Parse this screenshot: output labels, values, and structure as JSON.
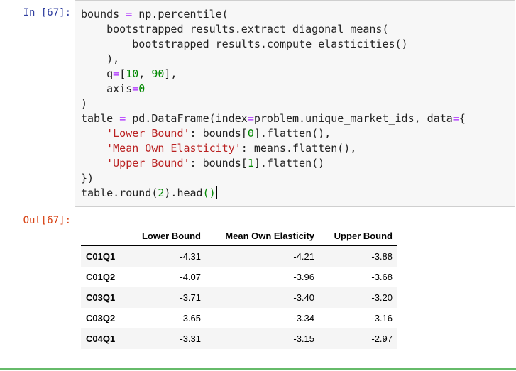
{
  "cell": {
    "in_prompt": "In [67]:",
    "out_prompt": "Out[67]:",
    "code_lines": [
      [
        {
          "t": "bounds "
        },
        {
          "t": "=",
          "c": "op"
        },
        {
          "t": " np.percentile("
        }
      ],
      [
        {
          "t": "    bootstrapped_results.extract_diagonal_means("
        }
      ],
      [
        {
          "t": "        bootstrapped_results.compute_elasticities()"
        }
      ],
      [
        {
          "t": "    ),"
        }
      ],
      [
        {
          "t": "    q"
        },
        {
          "t": "=",
          "c": "op"
        },
        {
          "t": "["
        },
        {
          "t": "10",
          "c": "num"
        },
        {
          "t": ", "
        },
        {
          "t": "90",
          "c": "num"
        },
        {
          "t": "],"
        }
      ],
      [
        {
          "t": "    axis"
        },
        {
          "t": "=",
          "c": "op"
        },
        {
          "t": "0",
          "c": "num"
        }
      ],
      [
        {
          "t": ")"
        }
      ],
      [
        {
          "t": "table "
        },
        {
          "t": "=",
          "c": "op"
        },
        {
          "t": " pd.DataFrame(index"
        },
        {
          "t": "=",
          "c": "op"
        },
        {
          "t": "problem.unique_market_ids, data"
        },
        {
          "t": "=",
          "c": "op"
        },
        {
          "t": "{"
        }
      ],
      [
        {
          "t": "    "
        },
        {
          "t": "'Lower Bound'",
          "c": "str"
        },
        {
          "t": ": bounds["
        },
        {
          "t": "0",
          "c": "num"
        },
        {
          "t": "].flatten(),"
        }
      ],
      [
        {
          "t": "    "
        },
        {
          "t": "'Mean Own Elasticity'",
          "c": "str"
        },
        {
          "t": ": means.flatten(),"
        }
      ],
      [
        {
          "t": "    "
        },
        {
          "t": "'Upper Bound'",
          "c": "str"
        },
        {
          "t": ": bounds["
        },
        {
          "t": "1",
          "c": "num"
        },
        {
          "t": "].flatten()"
        }
      ],
      [
        {
          "t": "})"
        }
      ],
      [
        {
          "t": "table.round("
        },
        {
          "t": "2",
          "c": "num"
        },
        {
          "t": ").head"
        },
        {
          "t": "()",
          "c": "paren-match"
        },
        {
          "t": "",
          "c": "cursor"
        }
      ]
    ]
  },
  "output": {
    "index_header": "",
    "columns": [
      "Lower Bound",
      "Mean Own Elasticity",
      "Upper Bound"
    ],
    "rows": [
      {
        "index": "C01Q1",
        "values": [
          "-4.31",
          "-4.21",
          "-3.88"
        ]
      },
      {
        "index": "C01Q2",
        "values": [
          "-4.07",
          "-3.96",
          "-3.68"
        ]
      },
      {
        "index": "C03Q1",
        "values": [
          "-3.71",
          "-3.40",
          "-3.20"
        ]
      },
      {
        "index": "C03Q2",
        "values": [
          "-3.65",
          "-3.34",
          "-3.16"
        ]
      },
      {
        "index": "C04Q1",
        "values": [
          "-3.31",
          "-3.15",
          "-2.97"
        ]
      }
    ]
  },
  "colors": {
    "in_prompt": "#303f9f",
    "out_prompt": "#d84315",
    "input_background": "#f7f7f7",
    "active_cell_border": "#66bb6a"
  }
}
